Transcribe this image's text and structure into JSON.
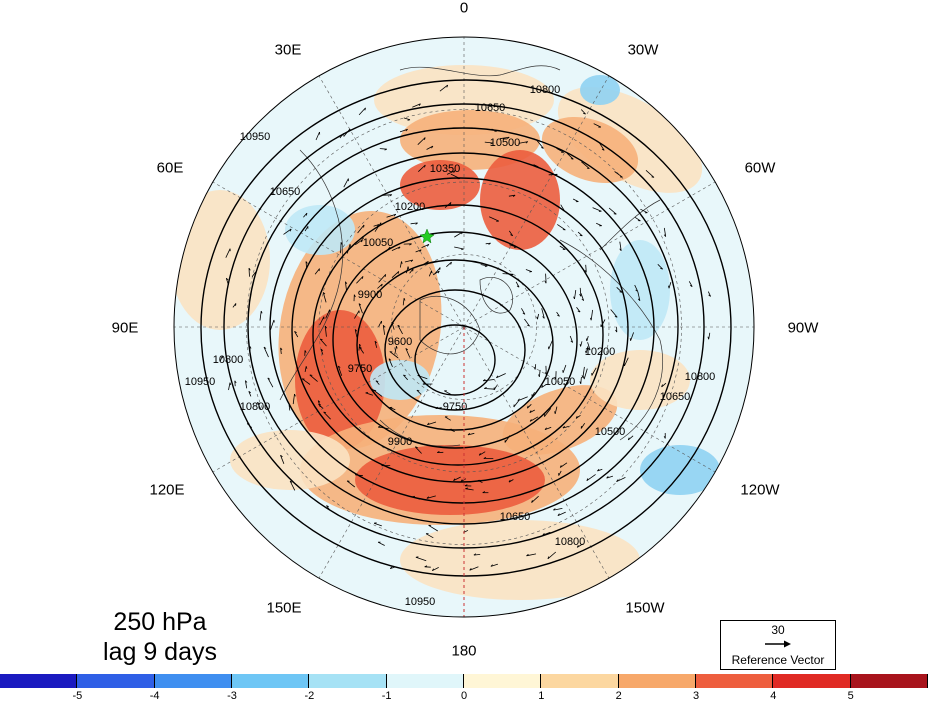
{
  "longitude_labels": [
    {
      "id": "lon-0",
      "text": "0"
    },
    {
      "id": "lon-30w",
      "text": "30W"
    },
    {
      "id": "lon-60w",
      "text": "60W"
    },
    {
      "id": "lon-90w",
      "text": "90W"
    },
    {
      "id": "lon-120w",
      "text": "120W"
    },
    {
      "id": "lon-150w",
      "text": "150W"
    },
    {
      "id": "lon-180",
      "text": "180"
    },
    {
      "id": "lon-150e",
      "text": "150E"
    },
    {
      "id": "lon-120e",
      "text": "120E"
    },
    {
      "id": "lon-90e",
      "text": "90E"
    },
    {
      "id": "lon-60e",
      "text": "60E"
    },
    {
      "id": "lon-30e",
      "text": "30E"
    }
  ],
  "contour_labels": [
    "10800",
    "10650",
    "10500",
    "10350",
    "10200",
    "10050",
    "9900",
    "9750",
    "9600",
    "10950",
    "10950",
    "10800",
    "10800",
    "10650",
    "9900",
    "9750",
    "10050",
    "10200",
    "10500",
    "10650",
    "10800",
    "10800",
    "10650",
    "10950"
  ],
  "annotation": {
    "level": "250 hPa",
    "lag": "lag 9 days"
  },
  "reference_vector": {
    "magnitude": "30",
    "label": "Reference Vector"
  },
  "colorbar": {
    "ticks": [
      "-5",
      "-4",
      "-3",
      "-2",
      "-1",
      "0",
      "1",
      "2",
      "3",
      "4",
      "5"
    ],
    "colors": [
      "#1a1ac0",
      "#2f5fe6",
      "#3f8ff0",
      "#6ec6f5",
      "#a6e2f5",
      "#e0f6fa",
      "#fff6d6",
      "#fcd7a0",
      "#f7a86a",
      "#ee5e3e",
      "#e02a24",
      "#a8141c"
    ]
  },
  "marker": {
    "name": "green-star",
    "color": "#22cc22"
  },
  "colors": {
    "neutral_fill": "#eef9fb",
    "warm_light": "#fbe2c2",
    "warm_mid": "#f6b07a",
    "warm_strong": "#ec5d3e",
    "cool_light": "#bfe8f6",
    "cool_mid": "#8fd2f2"
  }
}
